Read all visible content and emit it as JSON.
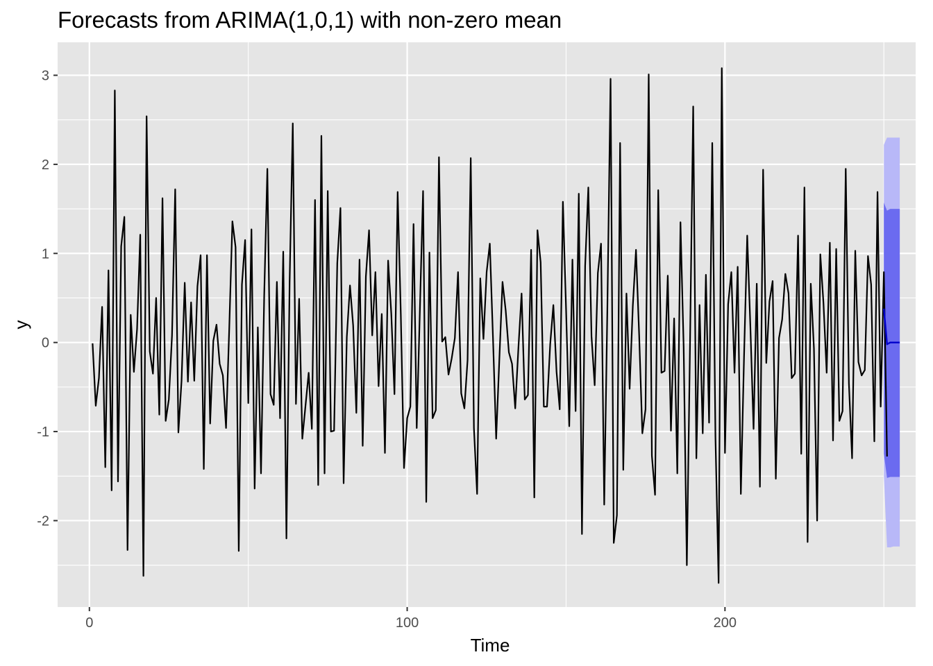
{
  "chart_data": {
    "type": "line",
    "title": "Forecasts from ARIMA(1,0,1) with non-zero mean",
    "xlabel": "Time",
    "ylabel": "y",
    "xlim": [
      -10,
      260
    ],
    "ylim": [
      -2.97,
      3.37
    ],
    "x_ticks": [
      0,
      100,
      200
    ],
    "x_tick_labels": [
      "0",
      "100",
      "200"
    ],
    "y_ticks": [
      -2,
      -1,
      0,
      1,
      2,
      3
    ],
    "y_tick_labels": [
      "-2",
      "-1",
      "0",
      "1",
      "2",
      "3"
    ],
    "grid": true,
    "legend": "none",
    "colors": {
      "panel": "#e5e5e5",
      "grid": "#ffffff",
      "series": "#000000",
      "forecast": "#0000cc",
      "pi80": "#6b6bf0",
      "pi95": "#b8b8f8"
    },
    "series": [
      {
        "x_start": 1,
        "values": [
          -0.01,
          -0.71,
          -0.4,
          0.4,
          -1.4,
          0.81,
          -1.66,
          2.83,
          -1.56,
          1.08,
          1.41,
          -2.33,
          0.31,
          -0.33,
          0.15,
          1.21,
          -2.62,
          2.54,
          -0.1,
          -0.35,
          0.5,
          -0.81,
          1.62,
          -0.88,
          -0.64,
          0.08,
          1.72,
          -1.01,
          -0.43,
          0.67,
          -0.44,
          0.45,
          -0.43,
          0.63,
          0.98,
          -1.42,
          0.98,
          -0.91,
          0.02,
          0.2,
          -0.24,
          -0.37,
          -0.96,
          0.15,
          1.36,
          1.07,
          -2.34,
          0.65,
          1.15,
          -0.68,
          1.27,
          -1.64,
          0.17,
          -1.47,
          0.52,
          1.95,
          -0.58,
          -0.7,
          0.68,
          -0.85,
          1.02,
          -2.2,
          0.67,
          2.46,
          -0.69,
          0.49,
          -1.08,
          -0.71,
          -0.34,
          -0.97,
          1.6,
          -1.6,
          2.32,
          -1.47,
          1.7,
          -1.0,
          -0.99,
          0.89,
          1.51,
          -1.58,
          0.06,
          0.64,
          0.19,
          -0.79,
          0.93,
          -1.16,
          0.74,
          1.26,
          0.08,
          0.79,
          -0.49,
          0.32,
          -1.24,
          0.92,
          0.32,
          -0.58,
          1.69,
          0.31,
          -1.41,
          -0.85,
          -0.72,
          1.33,
          -0.96,
          0.37,
          1.7,
          -1.79,
          1.01,
          -0.85,
          -0.76,
          2.08,
          0.01,
          0.06,
          -0.36,
          -0.18,
          0.05,
          0.79,
          -0.57,
          -0.74,
          -0.2,
          2.07,
          -0.96,
          -1.7,
          0.72,
          0.04,
          0.79,
          1.11,
          0.05,
          -1.08,
          -0.19,
          0.68,
          0.36,
          -0.11,
          -0.24,
          -0.74,
          -0.06,
          0.55,
          -0.64,
          -0.59,
          1.04,
          -1.74,
          1.26,
          0.9,
          -0.72,
          -0.72,
          -0.02,
          0.42,
          -0.33,
          -0.75,
          1.58,
          0.37,
          -0.94,
          0.93,
          -0.77,
          1.67,
          -2.15,
          0.86,
          1.74,
          0.07,
          -0.48,
          0.78,
          1.11,
          -1.82,
          0.4,
          2.96,
          -2.25,
          -1.94,
          2.24,
          -1.43,
          0.55,
          -0.52,
          0.41,
          1.04,
          0.08,
          -1.02,
          -0.75,
          3.01,
          -1.27,
          -1.71,
          1.71,
          -0.34,
          -0.32,
          0.75,
          -0.99,
          0.27,
          -1.47,
          1.35,
          -0.05,
          -2.5,
          -0.02,
          2.65,
          -1.3,
          0.42,
          -1.02,
          0.76,
          -0.9,
          2.24,
          -1.06,
          -2.7,
          3.08,
          -1.24,
          0.43,
          0.79,
          -0.34,
          0.85,
          -1.7,
          -0.16,
          1.2,
          0.17,
          -0.97,
          0.66,
          -1.62,
          1.94,
          -0.23,
          0.46,
          0.69,
          -1.53,
          0.05,
          0.26,
          0.77,
          0.55,
          -0.4,
          -0.35,
          1.2,
          -1.25,
          1.74,
          -2.24,
          0.66,
          -0.07,
          -2.0,
          0.99,
          0.44,
          -0.34,
          1.12,
          -1.1,
          1.05,
          -0.88,
          -0.77,
          1.95,
          -0.46,
          -1.3,
          1.03,
          -0.22,
          -0.37,
          -0.31,
          0.97,
          0.65,
          -1.11,
          1.69,
          -0.72,
          0.79,
          -1.28
        ]
      },
      {
        "x": [
          250,
          251,
          252,
          253,
          254,
          255
        ],
        "forecast": [
          0.38,
          -0.02,
          0.0,
          0.0,
          0.0,
          0.0
        ],
        "lo80": [
          -1.25,
          -1.52,
          -1.51,
          -1.51,
          -1.51,
          -1.51
        ],
        "hi80": [
          1.57,
          1.48,
          1.5,
          1.5,
          1.5,
          1.5
        ],
        "lo95": [
          -1.5,
          -2.3,
          -2.3,
          -2.29,
          -2.29,
          -2.29
        ],
        "hi95": [
          2.22,
          2.3,
          2.3,
          2.3,
          2.3,
          2.3
        ]
      }
    ]
  }
}
